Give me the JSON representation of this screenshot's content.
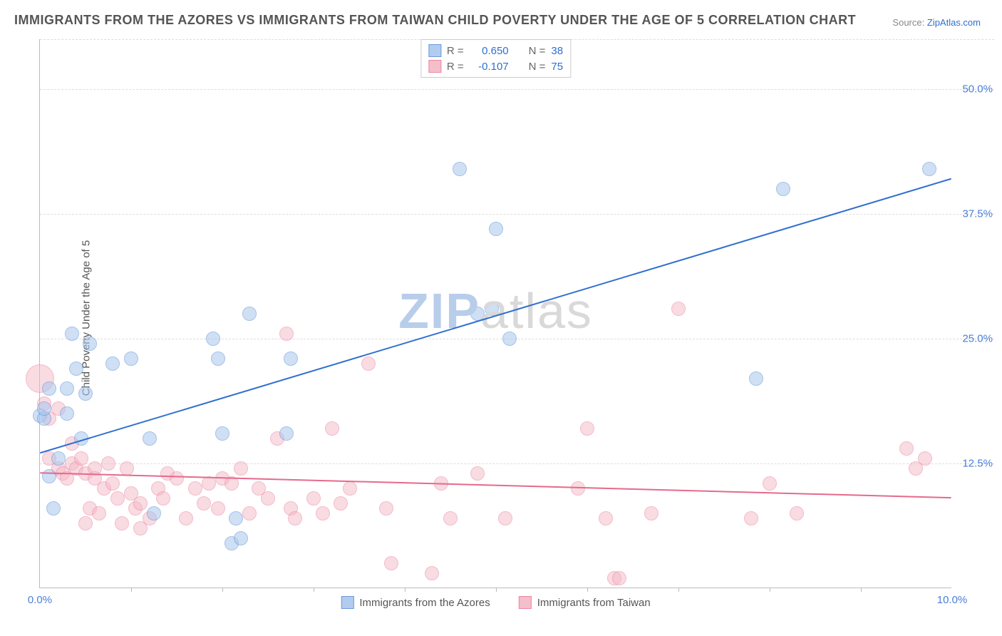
{
  "title": "IMMIGRANTS FROM THE AZORES VS IMMIGRANTS FROM TAIWAN CHILD POVERTY UNDER THE AGE OF 5 CORRELATION CHART",
  "source_label": "Source:",
  "source_site": "ZipAtlas.com",
  "ylabel": "Child Poverty Under the Age of 5",
  "watermark": "ZIPatlas",
  "chart": {
    "type": "scatter",
    "xlim": [
      0,
      10
    ],
    "ylim": [
      0,
      55
    ],
    "ytick_labels": [
      "12.5%",
      "25.0%",
      "37.5%",
      "50.0%"
    ],
    "ytick_values": [
      12.5,
      25.0,
      37.5,
      50.0
    ],
    "xtick_labels": [
      "0.0%",
      "10.0%"
    ],
    "xtick_values": [
      0,
      10
    ],
    "x_minor_ticks": [
      1,
      2,
      3,
      4,
      5,
      6,
      7,
      8,
      9
    ],
    "background_color": "#ffffff",
    "grid_color": "#dddddd",
    "series": [
      {
        "key": "azores",
        "label": "Immigrants from the Azores",
        "r_label": "R =",
        "r_value": "0.650",
        "n_label": "N =",
        "n_value": "38",
        "fill": "#a9c7ee",
        "stroke": "#5e8fd6",
        "fill_opacity": 0.55,
        "radius": 10,
        "line": {
          "x1": 0,
          "y1": 13.5,
          "x2": 10,
          "y2": 41.0,
          "color": "#2f6fcf",
          "width": 2
        },
        "points": [
          [
            0.0,
            17.3
          ],
          [
            0.05,
            17.0
          ],
          [
            0.05,
            18.0
          ],
          [
            0.1,
            20.0
          ],
          [
            0.1,
            11.2
          ],
          [
            0.15,
            8.0
          ],
          [
            0.2,
            13.0
          ],
          [
            0.3,
            20.0
          ],
          [
            0.3,
            17.5
          ],
          [
            0.35,
            25.5
          ],
          [
            0.4,
            22.0
          ],
          [
            0.45,
            15.0
          ],
          [
            0.5,
            19.5
          ],
          [
            0.55,
            24.5
          ],
          [
            0.8,
            22.5
          ],
          [
            1.0,
            23.0
          ],
          [
            1.2,
            15.0
          ],
          [
            1.25,
            7.5
          ],
          [
            1.9,
            25.0
          ],
          [
            1.95,
            23.0
          ],
          [
            2.0,
            15.5
          ],
          [
            2.1,
            4.5
          ],
          [
            2.15,
            7.0
          ],
          [
            2.2,
            5.0
          ],
          [
            2.3,
            27.5
          ],
          [
            2.7,
            15.5
          ],
          [
            2.75,
            23.0
          ],
          [
            4.6,
            42.0
          ],
          [
            4.8,
            27.5
          ],
          [
            4.95,
            28.0
          ],
          [
            5.0,
            36.0
          ],
          [
            5.15,
            25.0
          ],
          [
            7.85,
            21.0
          ],
          [
            8.15,
            40.0
          ],
          [
            9.75,
            42.0
          ]
        ]
      },
      {
        "key": "taiwan",
        "label": "Immigrants from Taiwan",
        "r_label": "R =",
        "r_value": "-0.107",
        "n_label": "N =",
        "n_value": "75",
        "fill": "#f5b8c6",
        "stroke": "#e97a9a",
        "fill_opacity": 0.5,
        "radius": 10,
        "large_radius": 20,
        "line": {
          "x1": 0,
          "y1": 11.5,
          "x2": 10,
          "y2": 9.0,
          "color": "#e56a8c",
          "width": 2
        },
        "points": [
          [
            0.0,
            21.0,
            20
          ],
          [
            0.05,
            18.5
          ],
          [
            0.1,
            17.0
          ],
          [
            0.1,
            13.0
          ],
          [
            0.2,
            18.0
          ],
          [
            0.2,
            12.0
          ],
          [
            0.25,
            11.5
          ],
          [
            0.3,
            11.0
          ],
          [
            0.35,
            12.5
          ],
          [
            0.35,
            14.5
          ],
          [
            0.4,
            12.0
          ],
          [
            0.45,
            13.0
          ],
          [
            0.5,
            11.5
          ],
          [
            0.5,
            6.5
          ],
          [
            0.55,
            8.0
          ],
          [
            0.6,
            12.0
          ],
          [
            0.6,
            11.0
          ],
          [
            0.65,
            7.5
          ],
          [
            0.7,
            10.0
          ],
          [
            0.75,
            12.5
          ],
          [
            0.8,
            10.5
          ],
          [
            0.85,
            9.0
          ],
          [
            0.9,
            6.5
          ],
          [
            0.95,
            12.0
          ],
          [
            1.0,
            9.5
          ],
          [
            1.05,
            8.0
          ],
          [
            1.1,
            8.5
          ],
          [
            1.1,
            6.0
          ],
          [
            1.2,
            7.0
          ],
          [
            1.3,
            10.0
          ],
          [
            1.35,
            9.0
          ],
          [
            1.4,
            11.5
          ],
          [
            1.5,
            11.0
          ],
          [
            1.6,
            7.0
          ],
          [
            1.7,
            10.0
          ],
          [
            1.8,
            8.5
          ],
          [
            1.85,
            10.5
          ],
          [
            1.95,
            8.0
          ],
          [
            2.0,
            11.0
          ],
          [
            2.1,
            10.5
          ],
          [
            2.2,
            12.0
          ],
          [
            2.3,
            7.5
          ],
          [
            2.4,
            10.0
          ],
          [
            2.5,
            9.0
          ],
          [
            2.6,
            15.0
          ],
          [
            2.7,
            25.5
          ],
          [
            2.75,
            8.0
          ],
          [
            2.8,
            7.0
          ],
          [
            3.0,
            9.0
          ],
          [
            3.1,
            7.5
          ],
          [
            3.2,
            16.0
          ],
          [
            3.3,
            8.5
          ],
          [
            3.4,
            10.0
          ],
          [
            3.6,
            22.5
          ],
          [
            3.8,
            8.0
          ],
          [
            3.85,
            2.5
          ],
          [
            4.3,
            1.5
          ],
          [
            4.4,
            10.5
          ],
          [
            4.5,
            7.0
          ],
          [
            4.8,
            11.5
          ],
          [
            5.1,
            7.0
          ],
          [
            5.9,
            10.0
          ],
          [
            6.0,
            16.0
          ],
          [
            6.2,
            7.0
          ],
          [
            6.3,
            1.0
          ],
          [
            6.35,
            1.0
          ],
          [
            6.7,
            7.5
          ],
          [
            7.0,
            28.0
          ],
          [
            7.8,
            7.0
          ],
          [
            8.0,
            10.5
          ],
          [
            8.3,
            7.5
          ],
          [
            9.5,
            14.0
          ],
          [
            9.6,
            12.0
          ],
          [
            9.7,
            13.0
          ]
        ]
      }
    ]
  }
}
